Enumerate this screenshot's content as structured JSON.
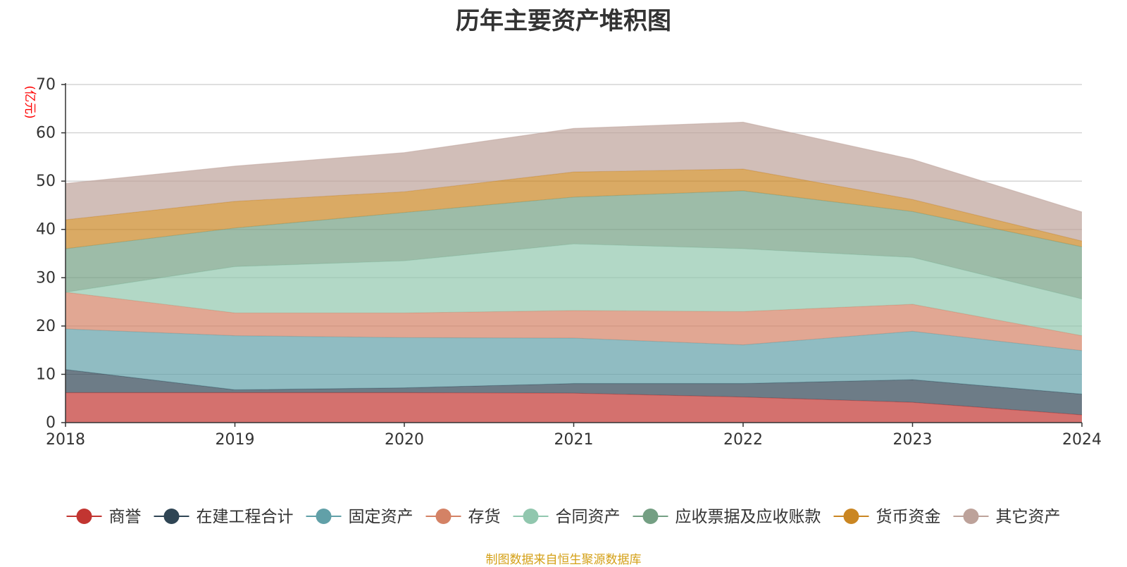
{
  "chart_data": {
    "type": "area",
    "stacked": true,
    "title": "历年主要资产堆积图",
    "ylabel": "(亿元)",
    "xlabel": "",
    "x": [
      "2018",
      "2019",
      "2020",
      "2021",
      "2022",
      "2023",
      "2024"
    ],
    "ylim": [
      0,
      70
    ],
    "yticks": [
      0,
      10,
      20,
      30,
      40,
      50,
      60,
      70
    ],
    "grid": true,
    "legend_position": "bottom",
    "series": [
      {
        "name": "商誉",
        "color": "#c23531",
        "values": [
          6.2,
          6.2,
          6.2,
          6.1,
          5.3,
          4.2,
          1.6
        ]
      },
      {
        "name": "在建工程合计",
        "color": "#2f4554",
        "values": [
          4.8,
          0.6,
          1.0,
          2.0,
          2.8,
          4.7,
          4.3
        ]
      },
      {
        "name": "固定资产",
        "color": "#61a0a8",
        "values": [
          8.4,
          11.2,
          10.4,
          9.4,
          8.0,
          10.0,
          9.0
        ]
      },
      {
        "name": "存货",
        "color": "#d48265",
        "values": [
          7.6,
          4.7,
          5.1,
          5.7,
          6.9,
          5.6,
          3.1
        ]
      },
      {
        "name": "合同资产",
        "color": "#91c7ae",
        "values": [
          0.0,
          9.6,
          10.8,
          13.8,
          13.0,
          9.7,
          7.6
        ]
      },
      {
        "name": "应收票据及应收账款",
        "color": "#749f83",
        "values": [
          9.0,
          8.0,
          10.0,
          9.7,
          12.0,
          9.5,
          10.8
        ]
      },
      {
        "name": "货币资金",
        "color": "#ca8622",
        "values": [
          6.0,
          5.5,
          4.3,
          5.2,
          4.5,
          2.5,
          1.2
        ]
      },
      {
        "name": "其它资产",
        "color": "#bda29a",
        "values": [
          7.5,
          7.3,
          8.1,
          9.0,
          9.7,
          8.3,
          6.0
        ]
      }
    ]
  },
  "footer": {
    "source_text": "制图数据来自恒生聚源数据库",
    "color": "#d4a017"
  },
  "colors": {
    "axis": "#333333",
    "grid": "#cccccc",
    "ylabel": "#ff0000",
    "title": "#333333"
  }
}
